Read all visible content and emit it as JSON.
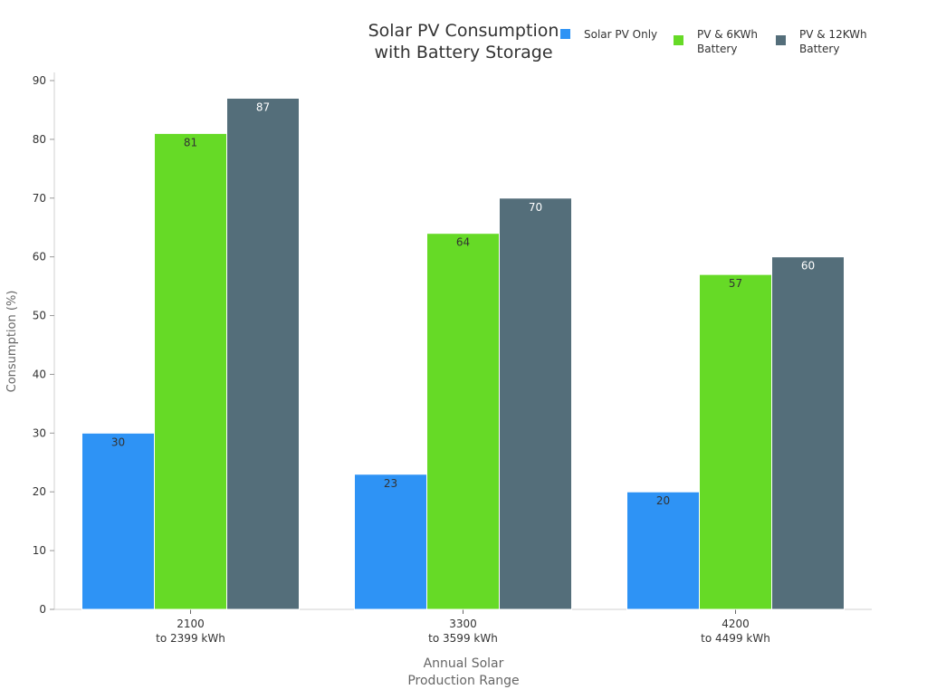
{
  "chart_data": {
    "type": "bar",
    "title": [
      "Solar PV Consumption",
      "with Battery Storage"
    ],
    "xlabel": [
      "Annual Solar",
      "Production Range"
    ],
    "ylabel": "Consumption (%)",
    "ylim": [
      0,
      90
    ],
    "yticks": [
      0,
      10,
      20,
      30,
      40,
      50,
      60,
      70,
      80,
      90
    ],
    "categories": [
      [
        "2100",
        "to 2399 kWh"
      ],
      [
        "3300",
        "to 3599 kWh"
      ],
      [
        "4200",
        "to 4499 kWh"
      ]
    ],
    "series": [
      {
        "name": [
          "Solar PV Only"
        ],
        "color": "#2e93f5",
        "label_color": "#333333",
        "values": [
          30,
          23,
          20
        ]
      },
      {
        "name": [
          "PV & 6KWh",
          "Battery"
        ],
        "color": "#66da26",
        "label_color": "#333333",
        "values": [
          81,
          64,
          57
        ]
      },
      {
        "name": [
          "PV & 12KWh",
          "Battery"
        ],
        "color": "#546e7a",
        "label_color": "#ffffff",
        "values": [
          87,
          70,
          60
        ]
      }
    ],
    "grid": false,
    "legend_position": "top-right"
  }
}
